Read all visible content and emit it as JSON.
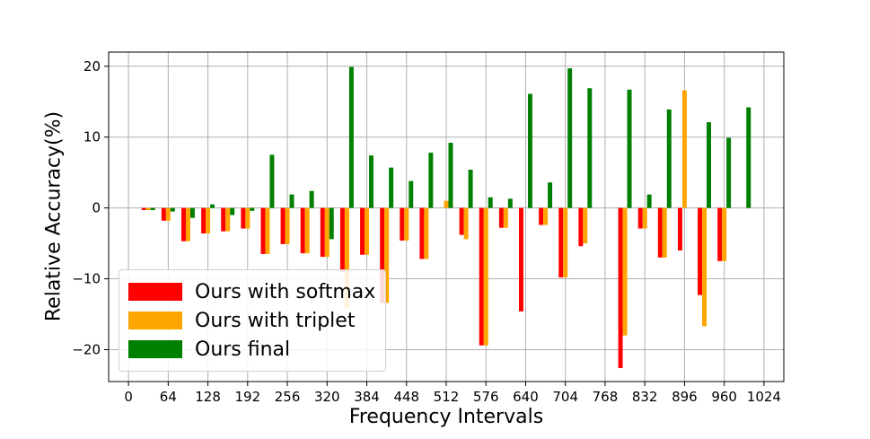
{
  "chart_data": {
    "type": "bar",
    "xlabel": "Frequency Intervals",
    "ylabel": "Relative Accuracy(%)",
    "x_ticks": [
      "0",
      "64",
      "128",
      "192",
      "256",
      "320",
      "384",
      "448",
      "512",
      "576",
      "640",
      "704",
      "768",
      "832",
      "896",
      "960",
      "1024"
    ],
    "y_ticks": [
      "−20",
      "−10",
      "0",
      "10",
      "20"
    ],
    "y_tick_values": [
      -20,
      -10,
      0,
      10,
      20
    ],
    "ylim": [
      -24.5,
      22
    ],
    "xlim": [
      -32,
      1056
    ],
    "grid": true,
    "legend_position": "lower-left",
    "x": [
      32,
      64,
      96,
      128,
      160,
      192,
      224,
      256,
      288,
      320,
      352,
      384,
      416,
      448,
      480,
      512,
      544,
      576,
      608,
      640,
      672,
      704,
      736,
      768,
      800,
      832,
      864,
      896,
      928,
      960,
      992
    ],
    "series": [
      {
        "name": "Ours with softmax",
        "color": "#ff0000",
        "values": [
          -0.3,
          -1.8,
          -4.7,
          -3.6,
          -3.3,
          -2.9,
          -6.5,
          -5.1,
          -6.4,
          -6.9,
          -9.0,
          -6.6,
          -13.4,
          -4.6,
          -7.2,
          null,
          -3.8,
          -19.4,
          -2.8,
          -14.6,
          -2.4,
          -9.8,
          -5.4,
          null,
          -22.6,
          -2.9,
          -7.0,
          -6.0,
          -12.3,
          -7.5,
          null
        ]
      },
      {
        "name": "Ours with triplet",
        "color": "#ffa500",
        "values": [
          -0.3,
          -1.8,
          -4.7,
          -3.6,
          -3.3,
          -2.9,
          -6.5,
          -5.1,
          -6.4,
          -6.9,
          -14.2,
          -6.6,
          -13.4,
          -4.6,
          -7.2,
          1.0,
          -4.4,
          -19.4,
          -2.8,
          null,
          -2.4,
          -9.8,
          -5.0,
          null,
          -18.0,
          -2.9,
          -7.0,
          16.6,
          -16.7,
          -7.5,
          null
        ]
      },
      {
        "name": "Ours final",
        "color": "#008000",
        "values": [
          -0.3,
          -0.5,
          -1.4,
          0.5,
          -1.0,
          -0.4,
          7.5,
          1.9,
          2.4,
          -4.4,
          19.9,
          7.4,
          5.7,
          3.8,
          7.8,
          9.2,
          5.4,
          1.5,
          1.3,
          16.1,
          3.6,
          19.7,
          16.9,
          null,
          16.7,
          1.9,
          13.9,
          null,
          12.1,
          9.9,
          14.2
        ]
      }
    ]
  }
}
